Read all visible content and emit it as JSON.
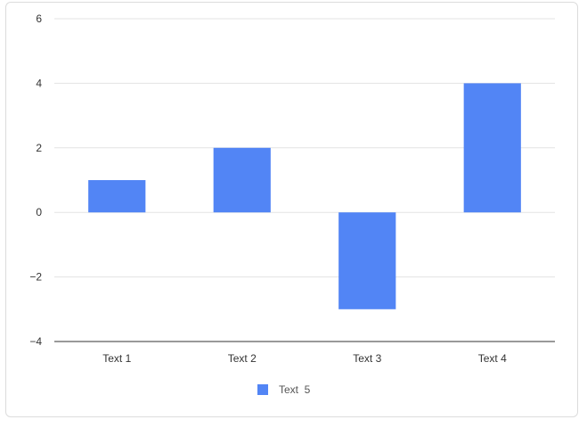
{
  "chart_data": {
    "type": "bar",
    "categories": [
      "Text 1",
      "Text 2",
      "Text 3",
      "Text 4"
    ],
    "series": [
      {
        "name": "Text  5",
        "values": [
          1,
          2,
          -3,
          4
        ],
        "color": "#5285f5"
      }
    ],
    "ylim": [
      -4,
      6
    ],
    "yticks": [
      6,
      4,
      2,
      0,
      -2,
      -4
    ],
    "ytick_labels": [
      "6",
      "4",
      "2",
      "0",
      "−2",
      "−4"
    ],
    "grid": true,
    "legend_position": "bottom-center",
    "title": "",
    "xlabel": "",
    "ylabel": ""
  }
}
